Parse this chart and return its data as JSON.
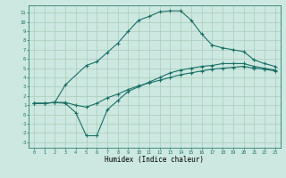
{
  "xlabel": "Humidex (Indice chaleur)",
  "bg_color": "#cce8e0",
  "grid_color": "#aaccbb",
  "line_color": "#1a7068",
  "xlim": [
    -0.5,
    23.5
  ],
  "ylim": [
    -3.6,
    11.8
  ],
  "xticks": [
    0,
    1,
    2,
    3,
    4,
    5,
    6,
    7,
    8,
    9,
    10,
    11,
    12,
    13,
    14,
    15,
    16,
    17,
    18,
    19,
    20,
    21,
    22,
    23
  ],
  "yticks": [
    -3,
    -2,
    -1,
    0,
    1,
    2,
    3,
    4,
    5,
    6,
    7,
    8,
    9,
    10,
    11
  ],
  "curve1_x": [
    0,
    1,
    2,
    3,
    5,
    6,
    7,
    8,
    9,
    10,
    11,
    12,
    13,
    14,
    15,
    16,
    17,
    18,
    19,
    20,
    21,
    22,
    23
  ],
  "curve1_y": [
    1.2,
    1.2,
    1.3,
    3.2,
    5.3,
    5.7,
    6.7,
    7.7,
    9.0,
    10.2,
    10.6,
    11.1,
    11.2,
    11.2,
    10.2,
    8.7,
    7.5,
    7.2,
    7.0,
    6.8,
    5.9,
    5.5,
    5.2
  ],
  "curve2_x": [
    0,
    1,
    2,
    3,
    4,
    5,
    6,
    7,
    8,
    9,
    10,
    11,
    12,
    13,
    14,
    15,
    16,
    17,
    18,
    19,
    20,
    21,
    22,
    23
  ],
  "curve2_y": [
    1.2,
    1.2,
    1.3,
    1.2,
    0.2,
    -2.3,
    -2.3,
    0.5,
    1.5,
    2.5,
    3.0,
    3.5,
    4.0,
    4.5,
    4.8,
    5.0,
    5.2,
    5.3,
    5.5,
    5.5,
    5.5,
    5.2,
    5.0,
    4.8
  ],
  "curve3_x": [
    0,
    1,
    2,
    3,
    4,
    5,
    6,
    7,
    8,
    9,
    10,
    11,
    12,
    13,
    14,
    15,
    16,
    17,
    18,
    19,
    20,
    21,
    22,
    23
  ],
  "curve3_y": [
    1.2,
    1.2,
    1.3,
    1.3,
    1.0,
    0.8,
    1.2,
    1.8,
    2.2,
    2.7,
    3.1,
    3.4,
    3.7,
    4.0,
    4.3,
    4.5,
    4.7,
    4.9,
    5.0,
    5.1,
    5.2,
    5.0,
    4.9,
    4.7
  ]
}
